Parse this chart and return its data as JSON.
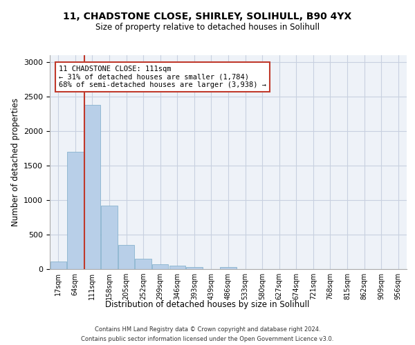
{
  "title_line1": "11, CHADSTONE CLOSE, SHIRLEY, SOLIHULL, B90 4YX",
  "title_line2": "Size of property relative to detached houses in Solihull",
  "xlabel": "Distribution of detached houses by size in Solihull",
  "ylabel": "Number of detached properties",
  "footer_line1": "Contains HM Land Registry data © Crown copyright and database right 2024.",
  "footer_line2": "Contains public sector information licensed under the Open Government Licence v3.0.",
  "bin_labels": [
    "17sqm",
    "64sqm",
    "111sqm",
    "158sqm",
    "205sqm",
    "252sqm",
    "299sqm",
    "346sqm",
    "393sqm",
    "439sqm",
    "486sqm",
    "533sqm",
    "580sqm",
    "627sqm",
    "674sqm",
    "721sqm",
    "768sqm",
    "815sqm",
    "862sqm",
    "909sqm",
    "956sqm"
  ],
  "bar_values": [
    110,
    1700,
    2380,
    920,
    355,
    150,
    75,
    55,
    30,
    0,
    30,
    0,
    0,
    0,
    0,
    0,
    0,
    0,
    0,
    0,
    0
  ],
  "bar_color": "#b8cfe8",
  "bar_edge_color": "#7aaac8",
  "highlight_index": 2,
  "highlight_color": "#c0392b",
  "ylim": [
    0,
    3100
  ],
  "yticks": [
    0,
    500,
    1000,
    1500,
    2000,
    2500,
    3000
  ],
  "annotation_text": "11 CHADSTONE CLOSE: 111sqm\n← 31% of detached houses are smaller (1,784)\n68% of semi-detached houses are larger (3,938) →",
  "bg_color": "#eef2f8",
  "grid_color": "#c8d0e0",
  "fig_width": 6.0,
  "fig_height": 5.0,
  "fig_dpi": 100
}
